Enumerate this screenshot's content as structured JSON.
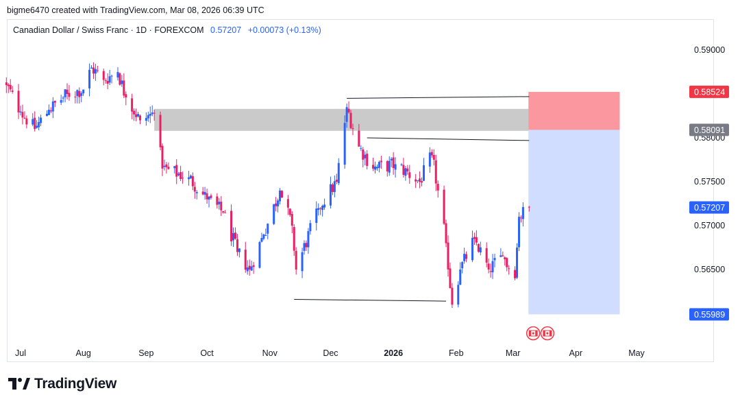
{
  "header": {
    "credit": "bigme6470 created with TradingView.com, Mar 08, 2026 06:39 UTC"
  },
  "legend": {
    "symbol": "Canadian Dollar / Swiss Franc · 1D · FOREXCOM",
    "price": "0.57207",
    "change": "+0.00073 (+0.13%)"
  },
  "footer": {
    "brand": "TradingView"
  },
  "colors": {
    "up": "#2962ff",
    "down": "#e91e63",
    "zone_gray": "#9e9e9e",
    "stop_zone": "#f7525f",
    "target_zone": "#2962ff",
    "label_stop": "#f23645",
    "label_entry": "#787b86",
    "label_price": "#2962ff"
  },
  "icons": [
    "canada-flag-event-icon",
    "canada-flag-event-icon"
  ],
  "chart_data": {
    "type": "candlestick",
    "title": "Canadian Dollar / Swiss Franc · 1D · FOREXCOM",
    "ylim": [
      0.5585,
      0.5925
    ],
    "y_ticks": [
      "0.59000",
      "0.58000",
      "0.57500",
      "0.57000",
      "0.56500"
    ],
    "x_ticks": [
      "Jul",
      "Aug",
      "Sep",
      "Oct",
      "Nov",
      "Dec",
      "2026",
      "Feb",
      "Mar",
      "Apr",
      "May"
    ],
    "x_tick_dates": [
      "2025-07-01",
      "2025-08-01",
      "2025-09-01",
      "2025-10-01",
      "2025-11-01",
      "2025-12-01",
      "2026-01-01",
      "2026-02-01",
      "2026-03-01",
      "2026-04-01",
      "2026-05-01"
    ],
    "price_labels": [
      {
        "value": "0.58524",
        "kind": "stop"
      },
      {
        "value": "0.58091",
        "kind": "entry"
      },
      {
        "value": "0.57207",
        "kind": "last"
      },
      {
        "value": "0.55989",
        "kind": "target"
      }
    ],
    "supply_zone": {
      "from_date": "2025-09-05",
      "to_date": "2026-03-08",
      "low": 0.5808,
      "high": 0.5833
    },
    "short_position": {
      "from_date": "2026-03-09",
      "to_date": "2026-04-20",
      "stop": 0.58524,
      "entry": 0.58091,
      "target": 0.55989
    },
    "trend_lines": [
      {
        "from": [
          "2025-12-09",
          0.5845
        ],
        "to": [
          "2026-03-09",
          0.5847
        ]
      },
      {
        "from": [
          "2025-12-19",
          0.58
        ],
        "to": [
          "2026-03-09",
          0.5797
        ]
      },
      {
        "from": [
          "2025-11-13",
          0.5616
        ],
        "to": [
          "2026-01-27",
          0.5614
        ]
      }
    ],
    "events": [
      {
        "date": "2026-03-11"
      },
      {
        "date": "2026-03-18"
      }
    ],
    "anchors": [
      {
        "date": "2025-06-24",
        "close": 0.586
      },
      {
        "date": "2025-07-01",
        "close": 0.583
      },
      {
        "date": "2025-07-08",
        "close": 0.581
      },
      {
        "date": "2025-07-15",
        "close": 0.5832
      },
      {
        "date": "2025-07-24",
        "close": 0.585
      },
      {
        "date": "2025-08-01",
        "close": 0.5855
      },
      {
        "date": "2025-08-05",
        "close": 0.588
      },
      {
        "date": "2025-08-11",
        "close": 0.5866
      },
      {
        "date": "2025-08-18",
        "close": 0.5875
      },
      {
        "date": "2025-08-22",
        "close": 0.5846
      },
      {
        "date": "2025-08-29",
        "close": 0.582
      },
      {
        "date": "2025-09-05",
        "close": 0.5828
      },
      {
        "date": "2025-09-09",
        "close": 0.5765
      },
      {
        "date": "2025-09-22",
        "close": 0.5755
      },
      {
        "date": "2025-10-01",
        "close": 0.573
      },
      {
        "date": "2025-10-09",
        "close": 0.5715
      },
      {
        "date": "2025-10-16",
        "close": 0.567
      },
      {
        "date": "2025-10-22",
        "close": 0.565
      },
      {
        "date": "2025-10-29",
        "close": 0.569
      },
      {
        "date": "2025-11-06",
        "close": 0.574
      },
      {
        "date": "2025-11-12",
        "close": 0.57
      },
      {
        "date": "2025-11-14",
        "close": 0.565
      },
      {
        "date": "2025-11-25",
        "close": 0.572
      },
      {
        "date": "2025-12-04",
        "close": 0.575
      },
      {
        "date": "2025-12-09",
        "close": 0.5835
      },
      {
        "date": "2025-12-15",
        "close": 0.579
      },
      {
        "date": "2025-12-22",
        "close": 0.5765
      },
      {
        "date": "2026-01-02",
        "close": 0.577
      },
      {
        "date": "2026-01-14",
        "close": 0.575
      },
      {
        "date": "2026-01-20",
        "close": 0.578
      },
      {
        "date": "2026-01-23",
        "close": 0.574
      },
      {
        "date": "2026-01-27",
        "close": 0.568
      },
      {
        "date": "2026-01-30",
        "close": 0.561
      },
      {
        "date": "2026-02-03",
        "close": 0.565
      },
      {
        "date": "2026-02-10",
        "close": 0.5685
      },
      {
        "date": "2026-02-17",
        "close": 0.565
      },
      {
        "date": "2026-02-24",
        "close": 0.5665
      },
      {
        "date": "2026-03-02",
        "close": 0.564
      },
      {
        "date": "2026-03-04",
        "close": 0.571
      },
      {
        "date": "2026-03-09",
        "close": 0.57207
      }
    ]
  }
}
